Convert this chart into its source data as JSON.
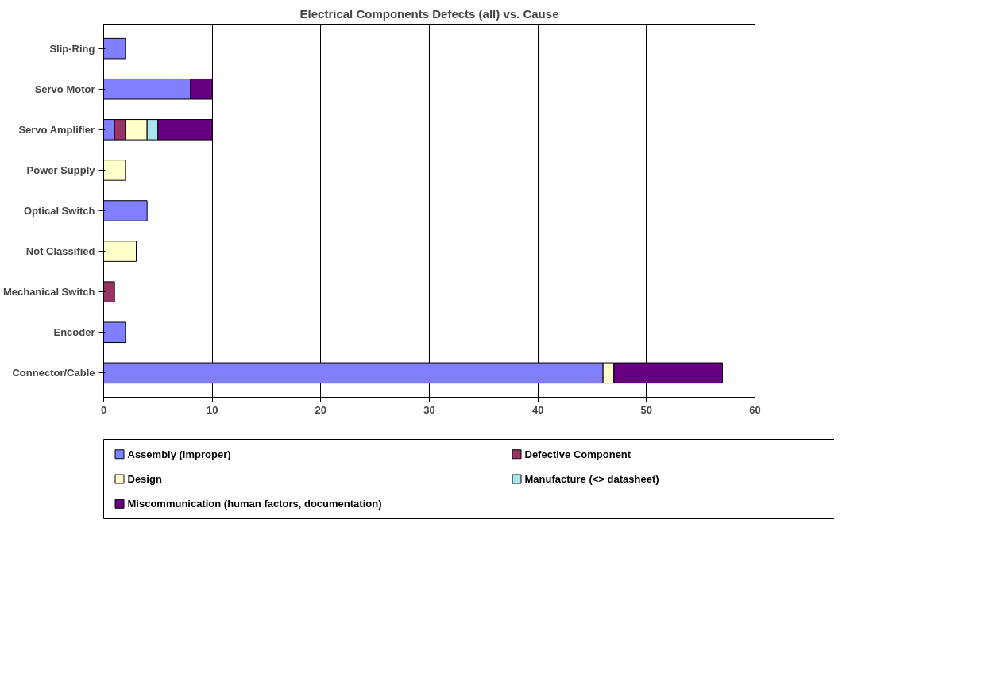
{
  "chart_data": {
    "type": "bar",
    "orientation": "horizontal",
    "stacked": true,
    "title": "Electrical Components Defects (all) vs. Cause",
    "categories": [
      "Slip-Ring",
      "Servo Motor",
      "Servo Amplifier",
      "Power Supply",
      "Optical Switch",
      "Not Classified",
      "Mechanical Switch",
      "Encoder",
      "Connector/Cable"
    ],
    "series": [
      {
        "name": "Assembly (improper)",
        "color": "#8080ff",
        "values": [
          2,
          8,
          1,
          0,
          4,
          0,
          0,
          2,
          46
        ]
      },
      {
        "name": "Defective Component",
        "color": "#993366",
        "values": [
          0,
          0,
          1,
          0,
          0,
          0,
          1,
          0,
          0
        ]
      },
      {
        "name": "Design",
        "color": "#ffffcc",
        "values": [
          0,
          0,
          2,
          2,
          0,
          3,
          0,
          0,
          1
        ]
      },
      {
        "name": "Manufacture (<> datasheet)",
        "color": "#a8e4ec",
        "values": [
          0,
          0,
          1,
          0,
          0,
          0,
          0,
          0,
          0
        ]
      },
      {
        "name": "Miscommunication (human factors, documentation)",
        "color": "#660080",
        "values": [
          0,
          2,
          5,
          0,
          0,
          0,
          0,
          0,
          10
        ]
      }
    ],
    "xlim": [
      0,
      60
    ],
    "xticks": [
      0,
      10,
      20,
      30,
      40,
      50,
      60
    ],
    "grid": "x",
    "legend": "bottom"
  }
}
